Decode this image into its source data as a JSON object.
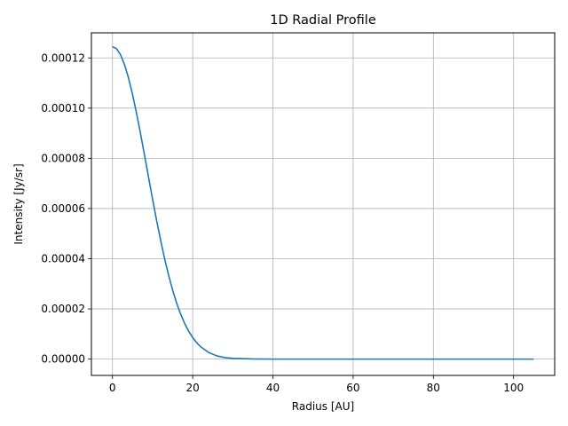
{
  "chart_data": {
    "type": "line",
    "title": "1D Radial Profile",
    "xlabel": "Radius [AU]",
    "ylabel": "Intensity [Jy/sr]",
    "xlim": [
      -5.25,
      110.25
    ],
    "ylim": [
      -6.5e-06,
      0.00013
    ],
    "xticks": [
      0,
      20,
      40,
      60,
      80,
      100
    ],
    "xtick_labels": [
      "0",
      "20",
      "40",
      "60",
      "80",
      "100"
    ],
    "yticks": [
      0,
      2e-05,
      4e-05,
      6e-05,
      8e-05,
      0.0001,
      0.00012
    ],
    "ytick_labels": [
      "0.00000",
      "0.00002",
      "0.00004",
      "0.00006",
      "0.00008",
      "0.00010",
      "0.00012"
    ],
    "grid": true,
    "line_color": "#1f77b4",
    "series": [
      {
        "x": [
          0,
          1,
          2,
          3,
          4,
          5,
          6,
          7,
          8,
          9,
          10,
          11,
          12,
          13,
          14,
          15,
          16,
          17,
          18,
          19,
          20,
          21,
          22,
          24,
          26,
          28,
          30,
          35,
          40,
          50,
          60,
          70,
          80,
          90,
          100,
          105
        ],
        "y": [
          0.0001245,
          0.0001237,
          0.0001213,
          0.0001173,
          0.000112,
          0.0001055,
          9.8e-05,
          8.98e-05,
          8.12e-05,
          7.24e-05,
          6.37e-05,
          5.53e-05,
          4.74e-05,
          4e-05,
          3.34e-05,
          2.75e-05,
          2.23e-05,
          1.79e-05,
          1.42e-05,
          1.11e-05,
          8.6e-06,
          6.5e-06,
          4.9e-06,
          2.6e-06,
          1.3e-06,
          6e-07,
          3e-07,
          5e-08,
          0.0,
          0.0,
          0.0,
          0.0,
          0.0,
          0.0,
          0.0,
          0.0
        ]
      }
    ]
  }
}
